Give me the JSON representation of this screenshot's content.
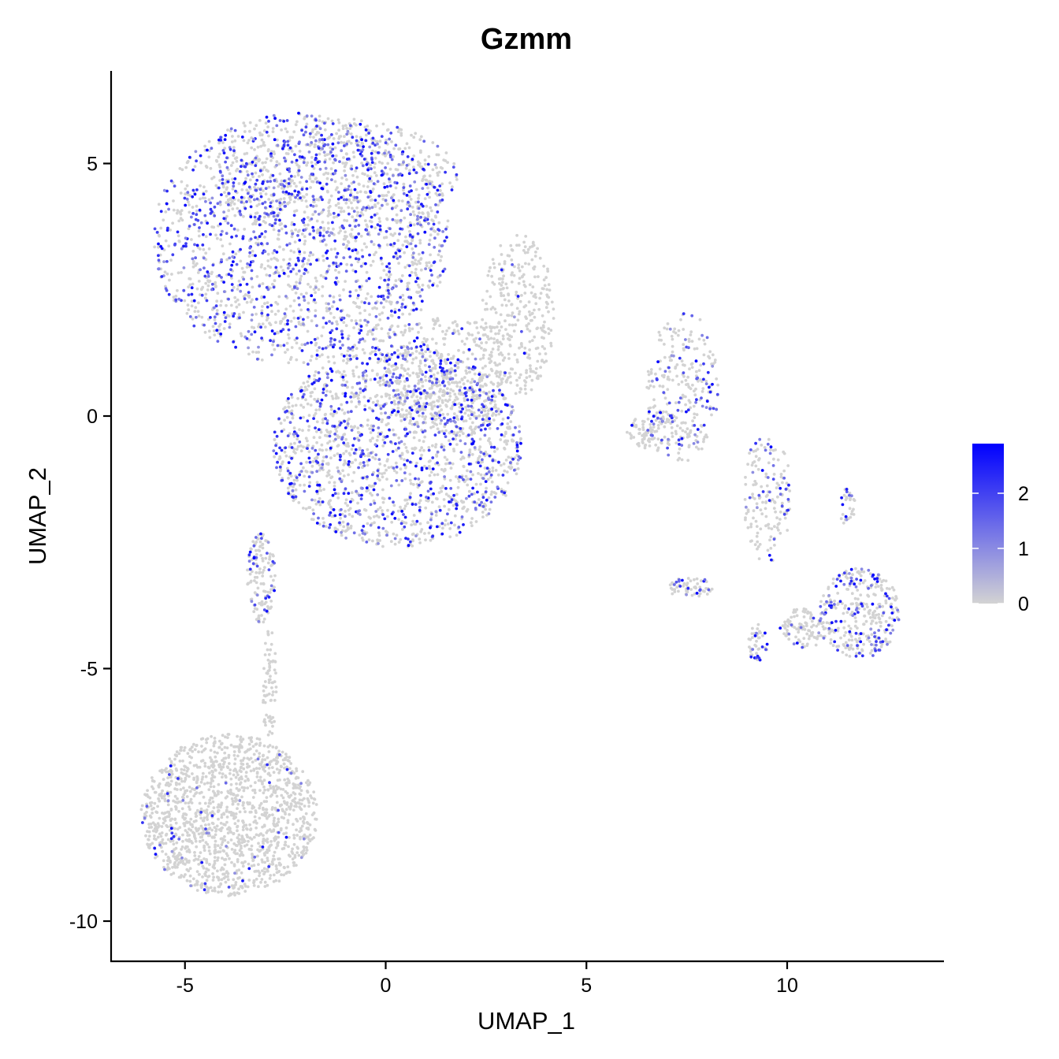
{
  "chart_data": {
    "type": "scatter",
    "title": "Gzmm",
    "xlabel": "UMAP_1",
    "ylabel": "UMAP_2",
    "xlim": [
      -7,
      13.9
    ],
    "ylim": [
      -10.8,
      6.9
    ],
    "x_ticks": [
      -5,
      0,
      5,
      10
    ],
    "y_ticks": [
      5,
      0,
      -5,
      -10
    ],
    "x_tick_labels": [
      "-5",
      "0",
      "5",
      "10"
    ],
    "y_tick_labels": [
      "5",
      "0",
      "-5",
      "-10"
    ],
    "grid": false,
    "legend": {
      "type": "colorbar",
      "position": "right",
      "min": 0,
      "max": 2.9,
      "ticks": [
        0,
        1,
        2
      ],
      "tick_labels": [
        "0",
        "1",
        "2"
      ],
      "low_color": "#d3d3d3",
      "high_color": "#0000ff"
    },
    "point_clusters_note_free": true,
    "clusters": [
      {
        "shape": "ellipse",
        "cx": -2.1,
        "cy": 3.5,
        "rx": 3.7,
        "ry": 2.5,
        "n": 1900,
        "expr_rate": 0.42
      },
      {
        "shape": "ellipse",
        "cx": -1.2,
        "cy": 4.7,
        "rx": 3.0,
        "ry": 1.2,
        "n": 500,
        "expr_rate": 0.35
      },
      {
        "shape": "ellipse",
        "cx": 3.3,
        "cy": 2.0,
        "rx": 0.9,
        "ry": 1.6,
        "n": 320,
        "expr_rate": 0.02
      },
      {
        "shape": "ellipse",
        "cx": 0.3,
        "cy": -0.6,
        "rx": 3.1,
        "ry": 2.0,
        "n": 1700,
        "expr_rate": 0.35
      },
      {
        "shape": "ellipse",
        "cx": 1.5,
        "cy": 0.8,
        "rx": 1.6,
        "ry": 1.2,
        "n": 450,
        "expr_rate": 0.08
      },
      {
        "shape": "ellipse",
        "cx": -3.9,
        "cy": -7.9,
        "rx": 2.2,
        "ry": 1.6,
        "n": 1500,
        "expr_rate": 0.03
      },
      {
        "shape": "ellipse",
        "cx": -3.1,
        "cy": -3.2,
        "rx": 0.35,
        "ry": 0.9,
        "n": 140,
        "expr_rate": 0.25
      },
      {
        "shape": "ellipse",
        "cx": -2.9,
        "cy": -5.3,
        "rx": 0.18,
        "ry": 1.1,
        "n": 70,
        "expr_rate": 0.02
      },
      {
        "shape": "ellipse",
        "cx": 7.4,
        "cy": 0.6,
        "rx": 0.9,
        "ry": 1.5,
        "n": 260,
        "expr_rate": 0.25
      },
      {
        "shape": "ellipse",
        "cx": 6.8,
        "cy": -0.3,
        "rx": 0.8,
        "ry": 0.4,
        "n": 110,
        "expr_rate": 0.2
      },
      {
        "shape": "ellipse",
        "cx": 9.5,
        "cy": -1.6,
        "rx": 0.6,
        "ry": 1.3,
        "n": 160,
        "expr_rate": 0.25
      },
      {
        "shape": "ellipse",
        "cx": 11.8,
        "cy": -3.9,
        "rx": 1.0,
        "ry": 0.9,
        "n": 330,
        "expr_rate": 0.3
      },
      {
        "shape": "ellipse",
        "cx": 10.4,
        "cy": -4.2,
        "rx": 0.6,
        "ry": 0.4,
        "n": 100,
        "expr_rate": 0.1
      },
      {
        "shape": "ellipse",
        "cx": 7.6,
        "cy": -3.4,
        "rx": 0.6,
        "ry": 0.2,
        "n": 60,
        "expr_rate": 0.25
      },
      {
        "shape": "ellipse",
        "cx": 9.3,
        "cy": -4.5,
        "rx": 0.3,
        "ry": 0.4,
        "n": 45,
        "expr_rate": 0.2
      },
      {
        "shape": "ellipse",
        "cx": 11.5,
        "cy": -1.8,
        "rx": 0.2,
        "ry": 0.4,
        "n": 30,
        "expr_rate": 0.2
      }
    ]
  }
}
